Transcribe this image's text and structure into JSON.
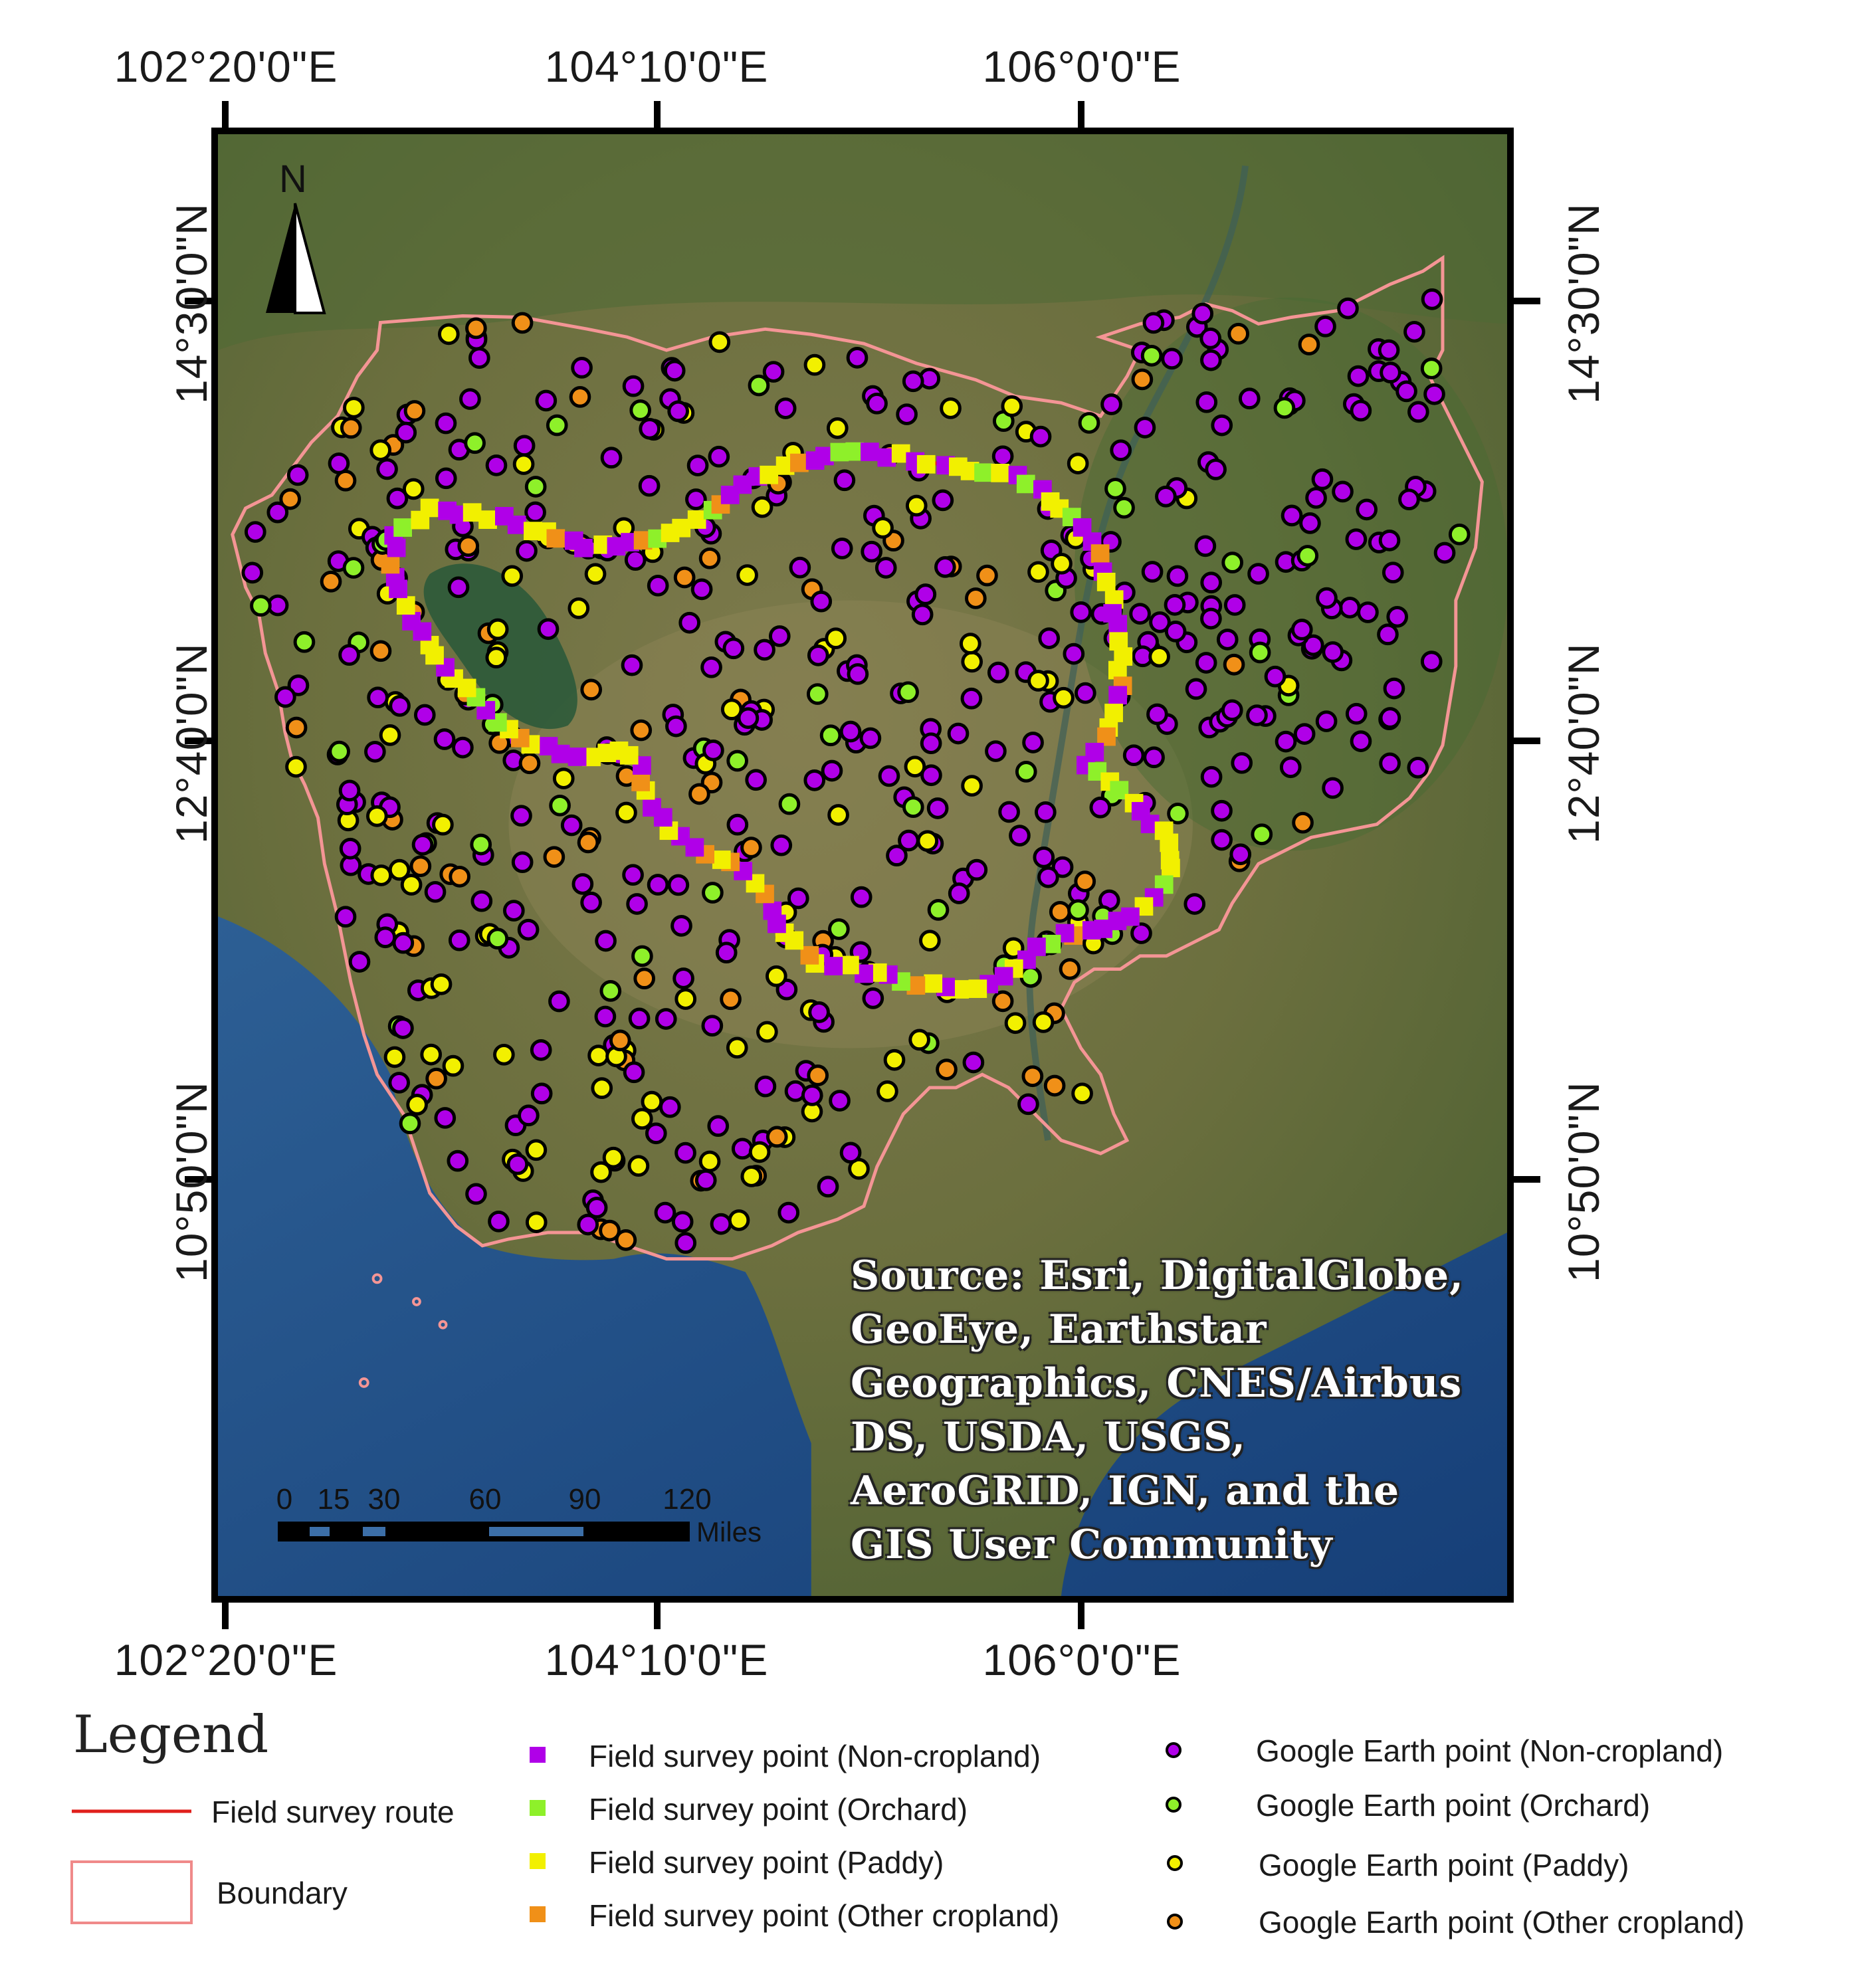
{
  "map": {
    "graticule": {
      "longitudes": [
        "102°20'0\"E",
        "104°10'0\"E",
        "106°0'0\"E"
      ],
      "latitudes": [
        "14°30'0\"N",
        "12°40'0\"N",
        "10°50'0\"N"
      ]
    },
    "north_label": "N",
    "scale_bar": {
      "ticks": [
        "0",
        "15",
        "30",
        "60",
        "90",
        "120"
      ],
      "unit": "Miles"
    },
    "source_credit": "Source: Esri, DigitalGlobe, GeoEye, Earthstar Geographics, CNES/Airbus DS, USDA, USGS, AeroGRID, IGN, and the GIS User Community",
    "colors": {
      "non_cropland": "#b000e8",
      "orchard": "#8ef02a",
      "paddy": "#f2f000",
      "other_cropland": "#f09018",
      "route": "#e0201c",
      "boundary": "#f08a8a",
      "sea": "#1d4f8c"
    }
  },
  "legend": {
    "title": "Legend",
    "route_label": "Field survey route",
    "boundary_label": "Boundary",
    "field_points": [
      {
        "label": "Field survey point (Non-cropland)",
        "color": "#b000e8"
      },
      {
        "label": "Field survey point (Orchard)",
        "color": "#8ef02a"
      },
      {
        "label": "Field survey point (Paddy)",
        "color": "#f2f000"
      },
      {
        "label": "Field survey point (Other cropland)",
        "color": "#f09018"
      }
    ],
    "google_points": [
      {
        "label": "Google Earth point (Non-cropland)",
        "color": "#b000e8"
      },
      {
        "label": "Google Earth point (Orchard)",
        "color": "#8ef02a"
      },
      {
        "label": "Google Earth point (Paddy)",
        "color": "#f2f000"
      },
      {
        "label": "Google Earth point (Other cropland)",
        "color": "#f09018"
      }
    ]
  }
}
